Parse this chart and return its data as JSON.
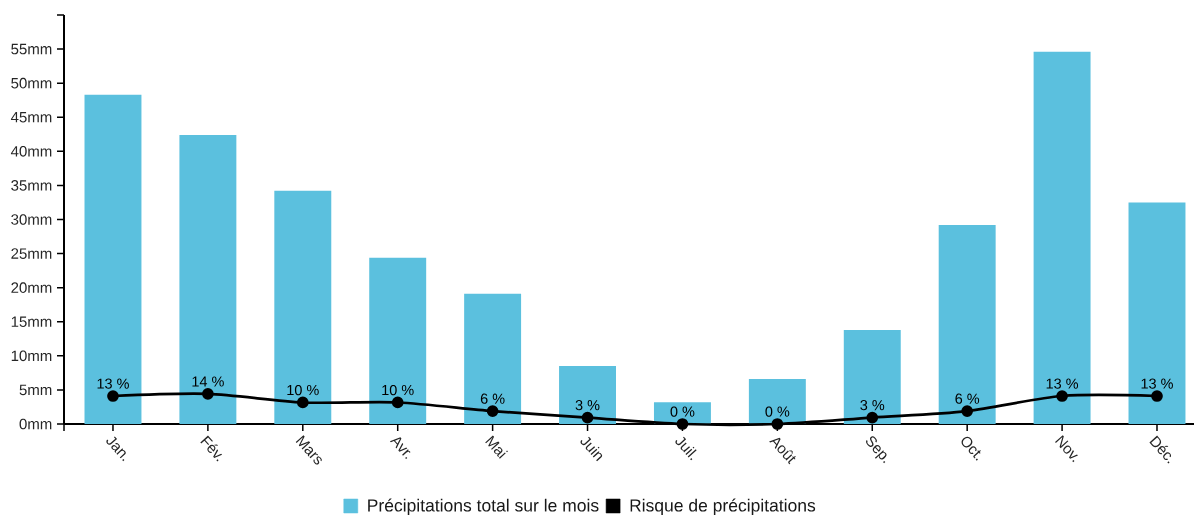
{
  "chart_data": {
    "type": "bar",
    "categories": [
      "Jan.",
      "Fév.",
      "Mars",
      "Avr.",
      "Mai",
      "Juin",
      "Juil.",
      "Août",
      "Sep.",
      "Oct.",
      "Nov.",
      "Déc."
    ],
    "series": [
      {
        "name": "Précipitations total sur le mois",
        "color": "#5bc0de",
        "values": [
          48.3,
          42.4,
          34.2,
          24.4,
          19.1,
          8.5,
          3.2,
          6.6,
          13.8,
          29.2,
          54.6,
          32.5
        ]
      },
      {
        "name": "Risque de précipitations",
        "type": "line",
        "axis": "y2",
        "color": "#000000",
        "marker": "circle",
        "values": [
          13,
          14,
          10,
          10,
          6,
          3,
          0,
          0,
          3,
          6,
          13,
          13
        ],
        "value_labels": [
          "13 %",
          "14 %",
          "10 %",
          "10 %",
          "6 %",
          "3 %",
          "0 %",
          "0 %",
          "3 %",
          "6 %",
          "13 %",
          "13 %"
        ]
      }
    ],
    "ylim": [
      0,
      60
    ],
    "yticks": [
      {
        "value": 0,
        "label": "0mm"
      },
      {
        "value": 5,
        "label": "5mm"
      },
      {
        "value": 10,
        "label": "10mm"
      },
      {
        "value": 15,
        "label": "15mm"
      },
      {
        "value": 20,
        "label": "20mm"
      },
      {
        "value": 25,
        "label": "25mm"
      },
      {
        "value": 30,
        "label": "30mm"
      },
      {
        "value": 35,
        "label": "35mm"
      },
      {
        "value": 40,
        "label": "40mm"
      },
      {
        "value": 45,
        "label": "45mm"
      },
      {
        "value": 50,
        "label": "50mm"
      },
      {
        "value": 55,
        "label": "55mm"
      },
      {
        "value": 60,
        "label": null
      }
    ],
    "y2lim": [
      0,
      190
    ],
    "legend": "bottom"
  }
}
